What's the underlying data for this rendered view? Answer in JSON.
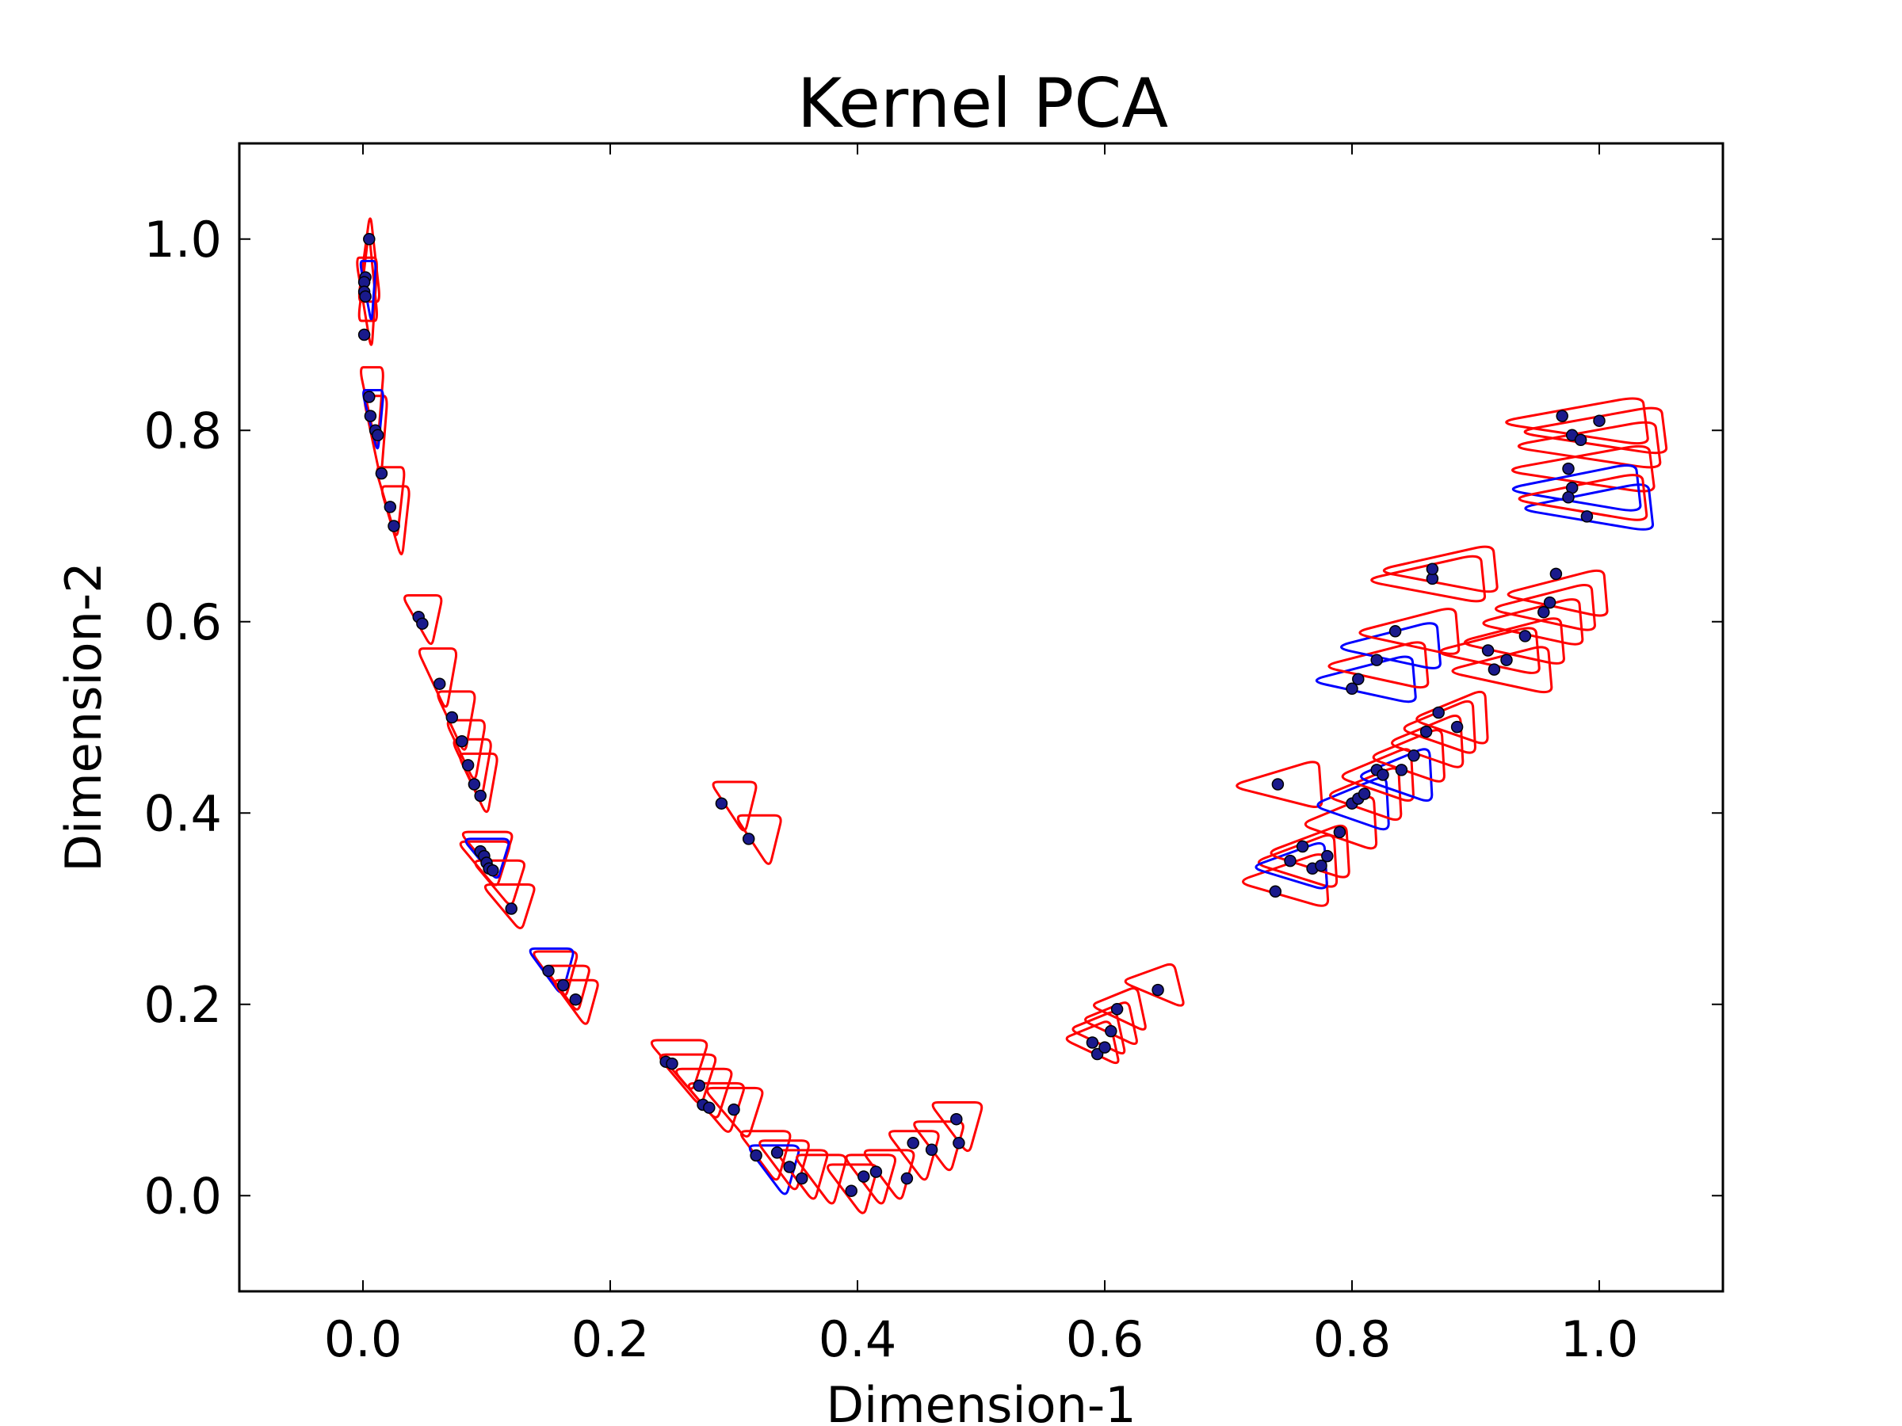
{
  "chart_data": {
    "type": "scatter",
    "title": "Kernel PCA",
    "xlabel": "Dimension-1",
    "ylabel": "Dimension-2",
    "xlim": [
      -0.1,
      1.1
    ],
    "ylim": [
      -0.1,
      1.1
    ],
    "xticks": [
      "0.0",
      "0.2",
      "0.4",
      "0.6",
      "0.8",
      "1.0"
    ],
    "yticks": [
      "0.0",
      "0.2",
      "0.4",
      "0.6",
      "0.8",
      "1.0"
    ],
    "grid": false,
    "legend": "none",
    "colors": {
      "points": "#1a1a8c",
      "contour_primary": "#ff0000",
      "contour_secondary": "#0000ff"
    },
    "points": [
      [
        0.005,
        1.0
      ],
      [
        0.002,
        0.96
      ],
      [
        0.001,
        0.955
      ],
      [
        0.001,
        0.945
      ],
      [
        0.002,
        0.94
      ],
      [
        0.001,
        0.9
      ],
      [
        0.005,
        0.835
      ],
      [
        0.006,
        0.815
      ],
      [
        0.01,
        0.8
      ],
      [
        0.012,
        0.795
      ],
      [
        0.015,
        0.755
      ],
      [
        0.022,
        0.72
      ],
      [
        0.025,
        0.7
      ],
      [
        0.045,
        0.605
      ],
      [
        0.048,
        0.598
      ],
      [
        0.062,
        0.535
      ],
      [
        0.072,
        0.5
      ],
      [
        0.08,
        0.475
      ],
      [
        0.085,
        0.45
      ],
      [
        0.09,
        0.43
      ],
      [
        0.095,
        0.418
      ],
      [
        0.095,
        0.36
      ],
      [
        0.098,
        0.355
      ],
      [
        0.1,
        0.348
      ],
      [
        0.102,
        0.342
      ],
      [
        0.105,
        0.34
      ],
      [
        0.12,
        0.3
      ],
      [
        0.15,
        0.235
      ],
      [
        0.162,
        0.22
      ],
      [
        0.172,
        0.205
      ],
      [
        0.245,
        0.14
      ],
      [
        0.25,
        0.138
      ],
      [
        0.272,
        0.115
      ],
      [
        0.275,
        0.095
      ],
      [
        0.28,
        0.092
      ],
      [
        0.3,
        0.09
      ],
      [
        0.29,
        0.41
      ],
      [
        0.312,
        0.373
      ],
      [
        0.318,
        0.042
      ],
      [
        0.335,
        0.045
      ],
      [
        0.345,
        0.03
      ],
      [
        0.355,
        0.018
      ],
      [
        0.395,
        0.005
      ],
      [
        0.405,
        0.02
      ],
      [
        0.415,
        0.025
      ],
      [
        0.44,
        0.018
      ],
      [
        0.445,
        0.055
      ],
      [
        0.46,
        0.048
      ],
      [
        0.48,
        0.08
      ],
      [
        0.482,
        0.055
      ],
      [
        0.59,
        0.16
      ],
      [
        0.594,
        0.148
      ],
      [
        0.6,
        0.155
      ],
      [
        0.605,
        0.172
      ],
      [
        0.61,
        0.195
      ],
      [
        0.643,
        0.215
      ],
      [
        0.74,
        0.43
      ],
      [
        0.738,
        0.318
      ],
      [
        0.75,
        0.35
      ],
      [
        0.76,
        0.365
      ],
      [
        0.768,
        0.342
      ],
      [
        0.775,
        0.345
      ],
      [
        0.78,
        0.355
      ],
      [
        0.79,
        0.38
      ],
      [
        0.8,
        0.41
      ],
      [
        0.805,
        0.415
      ],
      [
        0.81,
        0.42
      ],
      [
        0.82,
        0.445
      ],
      [
        0.825,
        0.44
      ],
      [
        0.84,
        0.445
      ],
      [
        0.85,
        0.46
      ],
      [
        0.86,
        0.485
      ],
      [
        0.87,
        0.505
      ],
      [
        0.885,
        0.49
      ],
      [
        0.8,
        0.53
      ],
      [
        0.805,
        0.54
      ],
      [
        0.82,
        0.56
      ],
      [
        0.835,
        0.59
      ],
      [
        0.865,
        0.645
      ],
      [
        0.865,
        0.655
      ],
      [
        0.91,
        0.57
      ],
      [
        0.915,
        0.55
      ],
      [
        0.925,
        0.56
      ],
      [
        0.94,
        0.585
      ],
      [
        0.955,
        0.61
      ],
      [
        0.96,
        0.62
      ],
      [
        0.965,
        0.65
      ],
      [
        0.97,
        0.815
      ],
      [
        0.978,
        0.795
      ],
      [
        0.985,
        0.79
      ],
      [
        1.0,
        0.81
      ],
      [
        0.975,
        0.76
      ],
      [
        0.978,
        0.74
      ],
      [
        0.975,
        0.73
      ],
      [
        0.99,
        0.71
      ]
    ],
    "contours": [
      {
        "x": 0.005,
        "y": 0.975,
        "color": "red",
        "w": 0.018,
        "h": 0.09,
        "dir": "up"
      },
      {
        "x": 0.004,
        "y": 0.955,
        "color": "red",
        "w": 0.016,
        "h": 0.09,
        "dir": "up"
      },
      {
        "x": 0.003,
        "y": 0.94,
        "color": "red",
        "w": 0.016,
        "h": 0.09,
        "dir": "down"
      },
      {
        "x": 0.004,
        "y": 0.95,
        "color": "blue",
        "w": 0.012,
        "h": 0.06,
        "dir": "down"
      },
      {
        "x": 0.007,
        "y": 0.83,
        "color": "red",
        "w": 0.018,
        "h": 0.08,
        "dir": "down"
      },
      {
        "x": 0.01,
        "y": 0.8,
        "color": "red",
        "w": 0.018,
        "h": 0.08,
        "dir": "down"
      },
      {
        "x": 0.008,
        "y": 0.815,
        "color": "blue",
        "w": 0.016,
        "h": 0.06,
        "dir": "down"
      },
      {
        "x": 0.022,
        "y": 0.73,
        "color": "red",
        "w": 0.022,
        "h": 0.07,
        "dir": "down"
      },
      {
        "x": 0.026,
        "y": 0.71,
        "color": "red",
        "w": 0.022,
        "h": 0.07,
        "dir": "down"
      },
      {
        "x": 0.048,
        "y": 0.605,
        "color": "red",
        "w": 0.03,
        "h": 0.05,
        "dir": "down"
      },
      {
        "x": 0.06,
        "y": 0.545,
        "color": "red",
        "w": 0.03,
        "h": 0.06,
        "dir": "down"
      },
      {
        "x": 0.075,
        "y": 0.5,
        "color": "red",
        "w": 0.03,
        "h": 0.06,
        "dir": "down"
      },
      {
        "x": 0.083,
        "y": 0.47,
        "color": "red",
        "w": 0.03,
        "h": 0.06,
        "dir": "down"
      },
      {
        "x": 0.088,
        "y": 0.45,
        "color": "red",
        "w": 0.03,
        "h": 0.06,
        "dir": "down"
      },
      {
        "x": 0.093,
        "y": 0.435,
        "color": "red",
        "w": 0.03,
        "h": 0.06,
        "dir": "down"
      },
      {
        "x": 0.1,
        "y": 0.36,
        "color": "red",
        "w": 0.04,
        "h": 0.045,
        "dir": "down"
      },
      {
        "x": 0.098,
        "y": 0.35,
        "color": "red",
        "w": 0.04,
        "h": 0.045,
        "dir": "down"
      },
      {
        "x": 0.1,
        "y": 0.355,
        "color": "blue",
        "w": 0.035,
        "h": 0.04,
        "dir": "down"
      },
      {
        "x": 0.11,
        "y": 0.33,
        "color": "red",
        "w": 0.04,
        "h": 0.045,
        "dir": "down"
      },
      {
        "x": 0.118,
        "y": 0.305,
        "color": "red",
        "w": 0.04,
        "h": 0.045,
        "dir": "down"
      },
      {
        "x": 0.155,
        "y": 0.235,
        "color": "red",
        "w": 0.035,
        "h": 0.045,
        "dir": "down"
      },
      {
        "x": 0.152,
        "y": 0.238,
        "color": "blue",
        "w": 0.035,
        "h": 0.045,
        "dir": "down"
      },
      {
        "x": 0.165,
        "y": 0.22,
        "color": "red",
        "w": 0.035,
        "h": 0.045,
        "dir": "down"
      },
      {
        "x": 0.172,
        "y": 0.205,
        "color": "red",
        "w": 0.035,
        "h": 0.045,
        "dir": "down"
      },
      {
        "x": 0.3,
        "y": 0.41,
        "color": "red",
        "w": 0.035,
        "h": 0.05,
        "dir": "down"
      },
      {
        "x": 0.32,
        "y": 0.375,
        "color": "red",
        "w": 0.035,
        "h": 0.05,
        "dir": "down"
      },
      {
        "x": 0.255,
        "y": 0.14,
        "color": "red",
        "w": 0.045,
        "h": 0.05,
        "dir": "down"
      },
      {
        "x": 0.262,
        "y": 0.125,
        "color": "red",
        "w": 0.045,
        "h": 0.05,
        "dir": "down"
      },
      {
        "x": 0.275,
        "y": 0.11,
        "color": "red",
        "w": 0.045,
        "h": 0.05,
        "dir": "down"
      },
      {
        "x": 0.285,
        "y": 0.095,
        "color": "red",
        "w": 0.045,
        "h": 0.05,
        "dir": "down"
      },
      {
        "x": 0.3,
        "y": 0.09,
        "color": "red",
        "w": 0.045,
        "h": 0.05,
        "dir": "down"
      },
      {
        "x": 0.325,
        "y": 0.045,
        "color": "red",
        "w": 0.04,
        "h": 0.05,
        "dir": "down"
      },
      {
        "x": 0.332,
        "y": 0.03,
        "color": "blue",
        "w": 0.04,
        "h": 0.05,
        "dir": "down"
      },
      {
        "x": 0.34,
        "y": 0.035,
        "color": "red",
        "w": 0.04,
        "h": 0.05,
        "dir": "down"
      },
      {
        "x": 0.355,
        "y": 0.025,
        "color": "red",
        "w": 0.04,
        "h": 0.05,
        "dir": "down"
      },
      {
        "x": 0.37,
        "y": 0.02,
        "color": "red",
        "w": 0.04,
        "h": 0.05,
        "dir": "down"
      },
      {
        "x": 0.395,
        "y": 0.01,
        "color": "red",
        "w": 0.04,
        "h": 0.05,
        "dir": "down"
      },
      {
        "x": 0.41,
        "y": 0.02,
        "color": "red",
        "w": 0.04,
        "h": 0.05,
        "dir": "down"
      },
      {
        "x": 0.425,
        "y": 0.025,
        "color": "red",
        "w": 0.04,
        "h": 0.05,
        "dir": "down"
      },
      {
        "x": 0.445,
        "y": 0.045,
        "color": "red",
        "w": 0.04,
        "h": 0.05,
        "dir": "down"
      },
      {
        "x": 0.465,
        "y": 0.055,
        "color": "red",
        "w": 0.04,
        "h": 0.05,
        "dir": "down"
      },
      {
        "x": 0.48,
        "y": 0.075,
        "color": "red",
        "w": 0.04,
        "h": 0.05,
        "dir": "down"
      },
      {
        "x": 0.59,
        "y": 0.16,
        "color": "red",
        "w": 0.04,
        "h": 0.04,
        "dir": "right"
      },
      {
        "x": 0.595,
        "y": 0.17,
        "color": "red",
        "w": 0.04,
        "h": 0.04,
        "dir": "right"
      },
      {
        "x": 0.605,
        "y": 0.18,
        "color": "red",
        "w": 0.04,
        "h": 0.04,
        "dir": "right"
      },
      {
        "x": 0.612,
        "y": 0.195,
        "color": "red",
        "w": 0.04,
        "h": 0.04,
        "dir": "right"
      },
      {
        "x": 0.64,
        "y": 0.22,
        "color": "red",
        "w": 0.045,
        "h": 0.04,
        "dir": "right"
      },
      {
        "x": 0.74,
        "y": 0.43,
        "color": "red",
        "w": 0.06,
        "h": 0.035,
        "dir": "left"
      },
      {
        "x": 0.745,
        "y": 0.33,
        "color": "red",
        "w": 0.06,
        "h": 0.04,
        "dir": "left"
      },
      {
        "x": 0.755,
        "y": 0.35,
        "color": "red",
        "w": 0.055,
        "h": 0.04,
        "dir": "left"
      },
      {
        "x": 0.75,
        "y": 0.345,
        "color": "blue",
        "w": 0.05,
        "h": 0.035,
        "dir": "left"
      },
      {
        "x": 0.765,
        "y": 0.36,
        "color": "red",
        "w": 0.055,
        "h": 0.04,
        "dir": "left"
      },
      {
        "x": 0.79,
        "y": 0.39,
        "color": "red",
        "w": 0.05,
        "h": 0.04,
        "dir": "left"
      },
      {
        "x": 0.8,
        "y": 0.41,
        "color": "blue",
        "w": 0.05,
        "h": 0.04,
        "dir": "left"
      },
      {
        "x": 0.81,
        "y": 0.42,
        "color": "red",
        "w": 0.05,
        "h": 0.04,
        "dir": "left"
      },
      {
        "x": 0.82,
        "y": 0.44,
        "color": "red",
        "w": 0.05,
        "h": 0.04,
        "dir": "left"
      },
      {
        "x": 0.835,
        "y": 0.44,
        "color": "blue",
        "w": 0.05,
        "h": 0.04,
        "dir": "left"
      },
      {
        "x": 0.845,
        "y": 0.46,
        "color": "red",
        "w": 0.05,
        "h": 0.04,
        "dir": "left"
      },
      {
        "x": 0.86,
        "y": 0.475,
        "color": "red",
        "w": 0.05,
        "h": 0.04,
        "dir": "left"
      },
      {
        "x": 0.87,
        "y": 0.49,
        "color": "red",
        "w": 0.05,
        "h": 0.04,
        "dir": "left"
      },
      {
        "x": 0.88,
        "y": 0.5,
        "color": "red",
        "w": 0.05,
        "h": 0.04,
        "dir": "left"
      },
      {
        "x": 0.81,
        "y": 0.54,
        "color": "blue",
        "w": 0.07,
        "h": 0.035,
        "dir": "left"
      },
      {
        "x": 0.82,
        "y": 0.555,
        "color": "red",
        "w": 0.07,
        "h": 0.035,
        "dir": "left"
      },
      {
        "x": 0.83,
        "y": 0.575,
        "color": "blue",
        "w": 0.07,
        "h": 0.035,
        "dir": "left"
      },
      {
        "x": 0.845,
        "y": 0.59,
        "color": "red",
        "w": 0.07,
        "h": 0.035,
        "dir": "left"
      },
      {
        "x": 0.86,
        "y": 0.645,
        "color": "red",
        "w": 0.08,
        "h": 0.035,
        "dir": "left"
      },
      {
        "x": 0.87,
        "y": 0.655,
        "color": "red",
        "w": 0.08,
        "h": 0.035,
        "dir": "left"
      },
      {
        "x": 0.91,
        "y": 0.57,
        "color": "red",
        "w": 0.07,
        "h": 0.035,
        "dir": "left"
      },
      {
        "x": 0.92,
        "y": 0.55,
        "color": "red",
        "w": 0.07,
        "h": 0.035,
        "dir": "left"
      },
      {
        "x": 0.93,
        "y": 0.58,
        "color": "red",
        "w": 0.07,
        "h": 0.035,
        "dir": "left"
      },
      {
        "x": 0.945,
        "y": 0.6,
        "color": "red",
        "w": 0.07,
        "h": 0.035,
        "dir": "left"
      },
      {
        "x": 0.955,
        "y": 0.615,
        "color": "red",
        "w": 0.07,
        "h": 0.035,
        "dir": "left"
      },
      {
        "x": 0.965,
        "y": 0.63,
        "color": "red",
        "w": 0.07,
        "h": 0.035,
        "dir": "left"
      },
      {
        "x": 0.98,
        "y": 0.81,
        "color": "red",
        "w": 0.1,
        "h": 0.035,
        "dir": "left"
      },
      {
        "x": 0.995,
        "y": 0.8,
        "color": "red",
        "w": 0.1,
        "h": 0.035,
        "dir": "left"
      },
      {
        "x": 0.99,
        "y": 0.785,
        "color": "red",
        "w": 0.1,
        "h": 0.035,
        "dir": "left"
      },
      {
        "x": 0.985,
        "y": 0.76,
        "color": "red",
        "w": 0.1,
        "h": 0.035,
        "dir": "left"
      },
      {
        "x": 0.98,
        "y": 0.74,
        "color": "blue",
        "w": 0.09,
        "h": 0.035,
        "dir": "left"
      },
      {
        "x": 0.99,
        "y": 0.72,
        "color": "blue",
        "w": 0.09,
        "h": 0.035,
        "dir": "left"
      },
      {
        "x": 0.985,
        "y": 0.73,
        "color": "red",
        "w": 0.09,
        "h": 0.035,
        "dir": "left"
      }
    ]
  }
}
